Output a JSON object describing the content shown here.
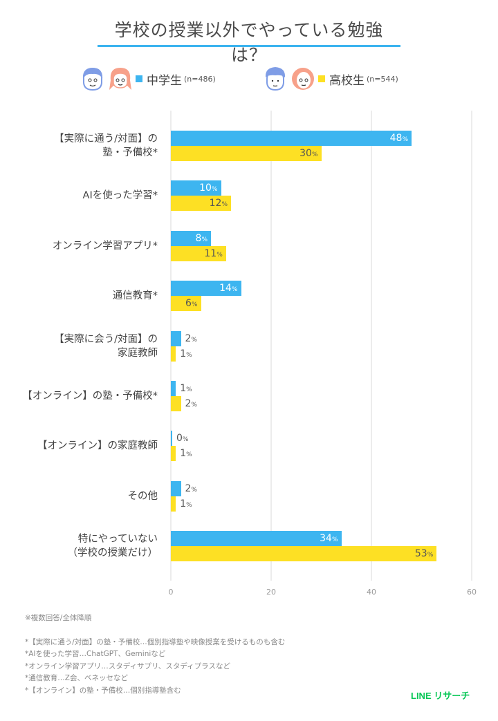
{
  "header": {
    "title": "学校の授業以外でやっている勉強は？"
  },
  "legend": [
    {
      "label": "中学生",
      "n": "(n=486)",
      "color": "#3db5f0",
      "icons": [
        "boy-face-icon",
        "girl-face-icon"
      ]
    },
    {
      "label": "高校生",
      "n": "(n=544)",
      "color": "#fde024",
      "icons": [
        "boy-face-icon",
        "girl-face-icon"
      ]
    }
  ],
  "chart_data": {
    "type": "bar",
    "orientation": "horizontal",
    "title": "学校の授業以外でやっている勉強は？",
    "categories": [
      "【実際に通う/対面】の塾・予備校*",
      "AIを使った学習*",
      "オンライン学習アプリ*",
      "通信教育*",
      "【実際に会う/対面】の家庭教師",
      "【オンライン】の塾・予備校*",
      "【オンライン】の家庭教師",
      "その他",
      "特にやっていない（学校の授業だけ）"
    ],
    "series": [
      {
        "name": "中学生 (n=486)",
        "color": "#3db5f0",
        "values": [
          48,
          10,
          8,
          14,
          2,
          1,
          0,
          2,
          34
        ]
      },
      {
        "name": "高校生 (n=544)",
        "color": "#fde024",
        "values": [
          30,
          12,
          11,
          6,
          1,
          2,
          1,
          1,
          53
        ]
      }
    ],
    "xlabel": "",
    "ylabel": "",
    "xlim": [
      0,
      60
    ],
    "xticks": [
      0,
      20,
      40,
      60
    ],
    "unit": "%",
    "grid": true,
    "legend_position": "top"
  },
  "rows": [
    {
      "label_lines": [
        "【実際に通う/対面】の",
        "塾・予備校*"
      ],
      "a": "48",
      "b": "30"
    },
    {
      "label_lines": [
        "AIを使った学習*"
      ],
      "a": "10",
      "b": "12"
    },
    {
      "label_lines": [
        "オンライン学習アプリ*"
      ],
      "a": "8",
      "b": "11"
    },
    {
      "label_lines": [
        "通信教育*"
      ],
      "a": "14",
      "b": "6"
    },
    {
      "label_lines": [
        "【実際に会う/対面】の",
        "家庭教師"
      ],
      "a": "2",
      "b": "1"
    },
    {
      "label_lines": [
        "【オンライン】の塾・予備校*"
      ],
      "a": "1",
      "b": "2"
    },
    {
      "label_lines": [
        "【オンライン】の家庭教師"
      ],
      "a": "0",
      "b": "1"
    },
    {
      "label_lines": [
        "その他"
      ],
      "a": "2",
      "b": "1"
    },
    {
      "label_lines": [
        "特にやっていない",
        "（学校の授業だけ）"
      ],
      "a": "34",
      "b": "53"
    }
  ],
  "axis": {
    "ticks": [
      "0",
      "20",
      "40",
      "60"
    ],
    "percent_sign": "%"
  },
  "footnotes": {
    "summary": "※複数回答/全体降順",
    "notes": [
      "*【実際に通う/対面】の塾・予備校…個別指導塾や映像授業を受けるものも含む",
      "*AIを使った学習…ChatGPT、Geminiなど",
      "*オンライン学習アプリ…スタディサプリ、スタディプラスなど",
      "*通信教育…Z会、ベネッセなど",
      "*【オンライン】の塾・予備校…個別指導塾含む"
    ]
  },
  "brand": {
    "label": "LINE リサーチ",
    "color": "#06c755"
  }
}
